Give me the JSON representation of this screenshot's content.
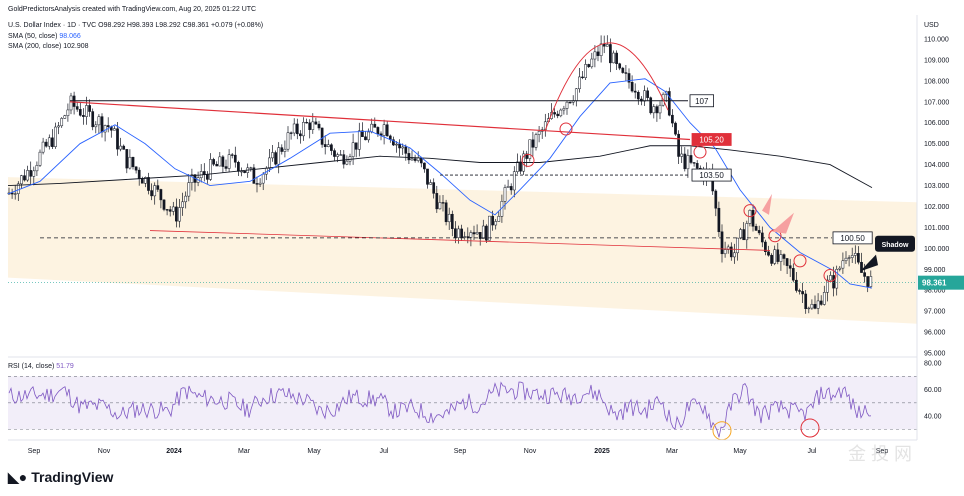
{
  "header": {
    "created_by": "GoldPredictorsAnalysis created with TradingView.com, Aug 20, 2025 01:22 UTC"
  },
  "chart_data": {
    "type": "candlestick",
    "symbol_line": "U.S. Dollar Index · 1D · TVC",
    "ohlc": {
      "open": "O98.292",
      "high": "H98.393",
      "low": "L98.292",
      "close": "C98.361",
      "change": "+0.079 (+0.08%)"
    },
    "indicators": [
      {
        "label": "SMA (50, close)",
        "value": "98.066",
        "color": "#2962ff"
      },
      {
        "label": "SMA (200, close)",
        "value": "102.908",
        "color": "#131722"
      }
    ],
    "currency_label": "USD",
    "y_ticks": [
      "110.000",
      "109.000",
      "108.000",
      "107.000",
      "106.000",
      "105.000",
      "104.000",
      "103.000",
      "102.000",
      "101.000",
      "100.000",
      "99.000",
      "98.000",
      "97.000",
      "96.000",
      "95.000"
    ],
    "ylim": [
      94.6,
      111.0
    ],
    "last_price": "98.361",
    "x_ticks": [
      "Sep",
      "Nov",
      "2024",
      "Mar",
      "May",
      "Jul",
      "Sep",
      "Nov",
      "2025",
      "Mar",
      "May",
      "Jul",
      "Sep"
    ],
    "level_labels": {
      "l107": "107",
      "l105": "105.20",
      "l103": "103.50",
      "l100": "100.50"
    },
    "callout": "Shadow",
    "colors": {
      "up": "#26a69a",
      "down": "#ef5350",
      "candle": "#131722",
      "channel": "#fdf1dc",
      "resistance": "#e0303a",
      "sma50": "#2962ff",
      "sma200": "#131722",
      "callout_bg": "#131722"
    },
    "rsi": {
      "label": "RSI (14, close)",
      "value": "51.79",
      "y_ticks": [
        "80.00",
        "60.00",
        "40.00"
      ],
      "upper": 70,
      "mid": 50,
      "lower": 30,
      "color": "#7e57c2"
    },
    "watermark": "金 投 网"
  },
  "footer": {
    "brand": "TradingView"
  }
}
